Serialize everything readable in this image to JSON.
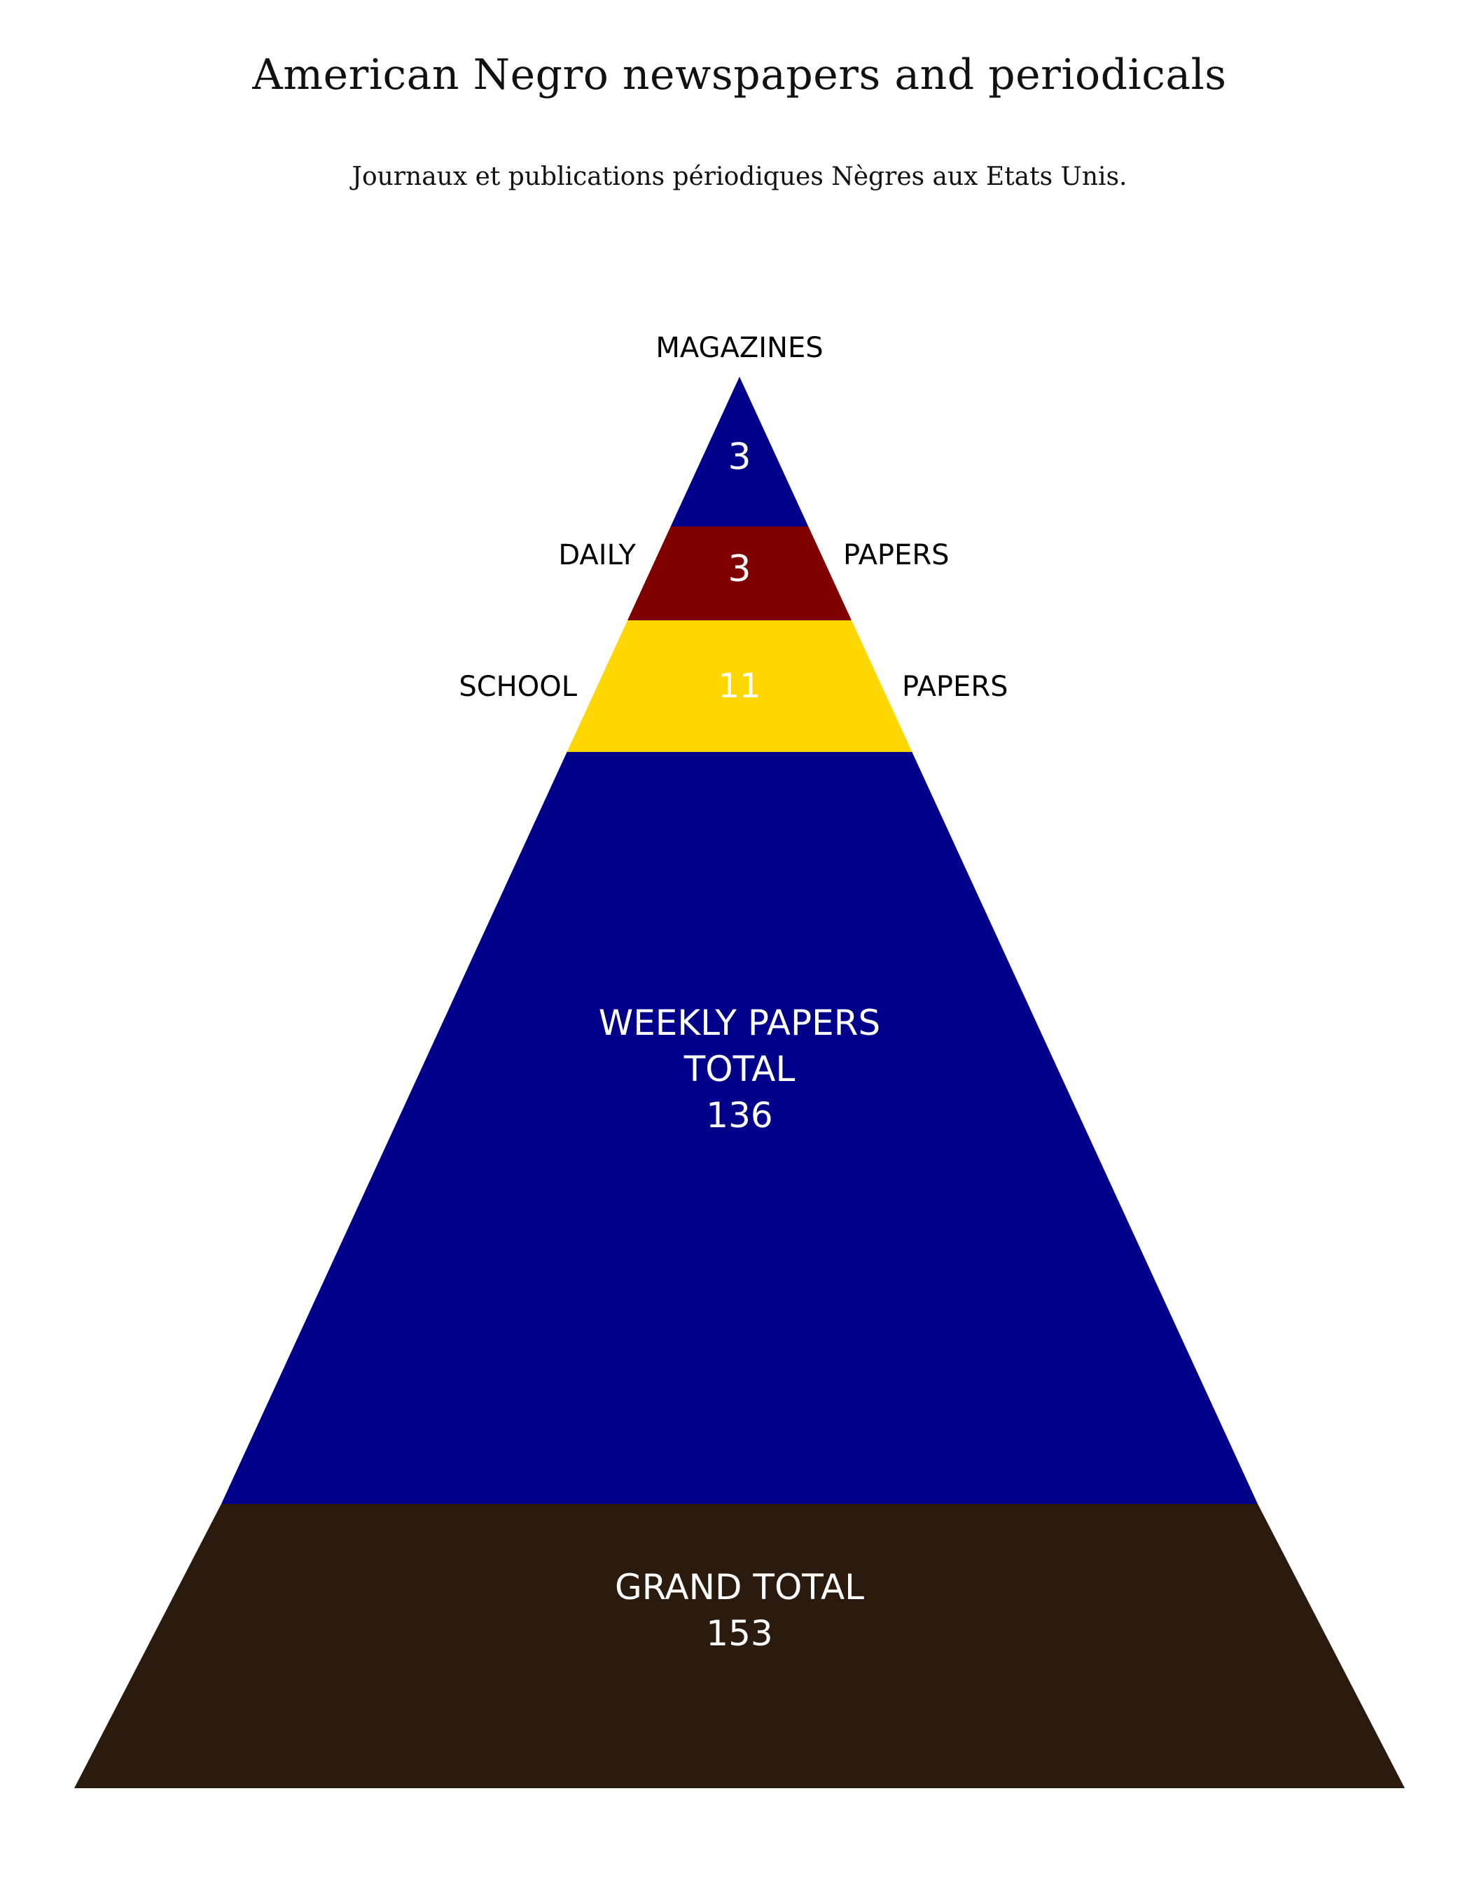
{
  "title": "American Negro newspapers and periodicals",
  "subtitle": "Journaux et publications périodiques Nègres aux Etats Unis.",
  "chart_data": {
    "type": "pyramid",
    "title": "American Negro newspapers and periodicals",
    "subtitle": "Journaux et publications périodiques Nègres aux Etats Unis.",
    "tiers": [
      {
        "name": "Magazines",
        "value": 3,
        "value_text": "3",
        "labels": [
          "MAGAZINES"
        ],
        "color": "#00008B"
      },
      {
        "name": "Daily papers",
        "value": 3,
        "value_text": "3",
        "labels": [
          "DAILY",
          "PAPERS"
        ],
        "color": "#800000"
      },
      {
        "name": "School papers",
        "value": 11,
        "value_text": "11",
        "labels": [
          "SCHOOL",
          "PAPERS"
        ],
        "color": "#FFD700"
      },
      {
        "name": "Weekly papers",
        "value": 136,
        "value_text": "136",
        "inner_lines": [
          "WEEKLY PAPERS",
          "TOTAL",
          "136"
        ],
        "color": "#00008B"
      },
      {
        "name": "Grand total",
        "value": 153,
        "value_text": "153",
        "inner_lines": [
          "GRAND TOTAL",
          "153"
        ],
        "color": "#2A1B0E"
      }
    ]
  }
}
